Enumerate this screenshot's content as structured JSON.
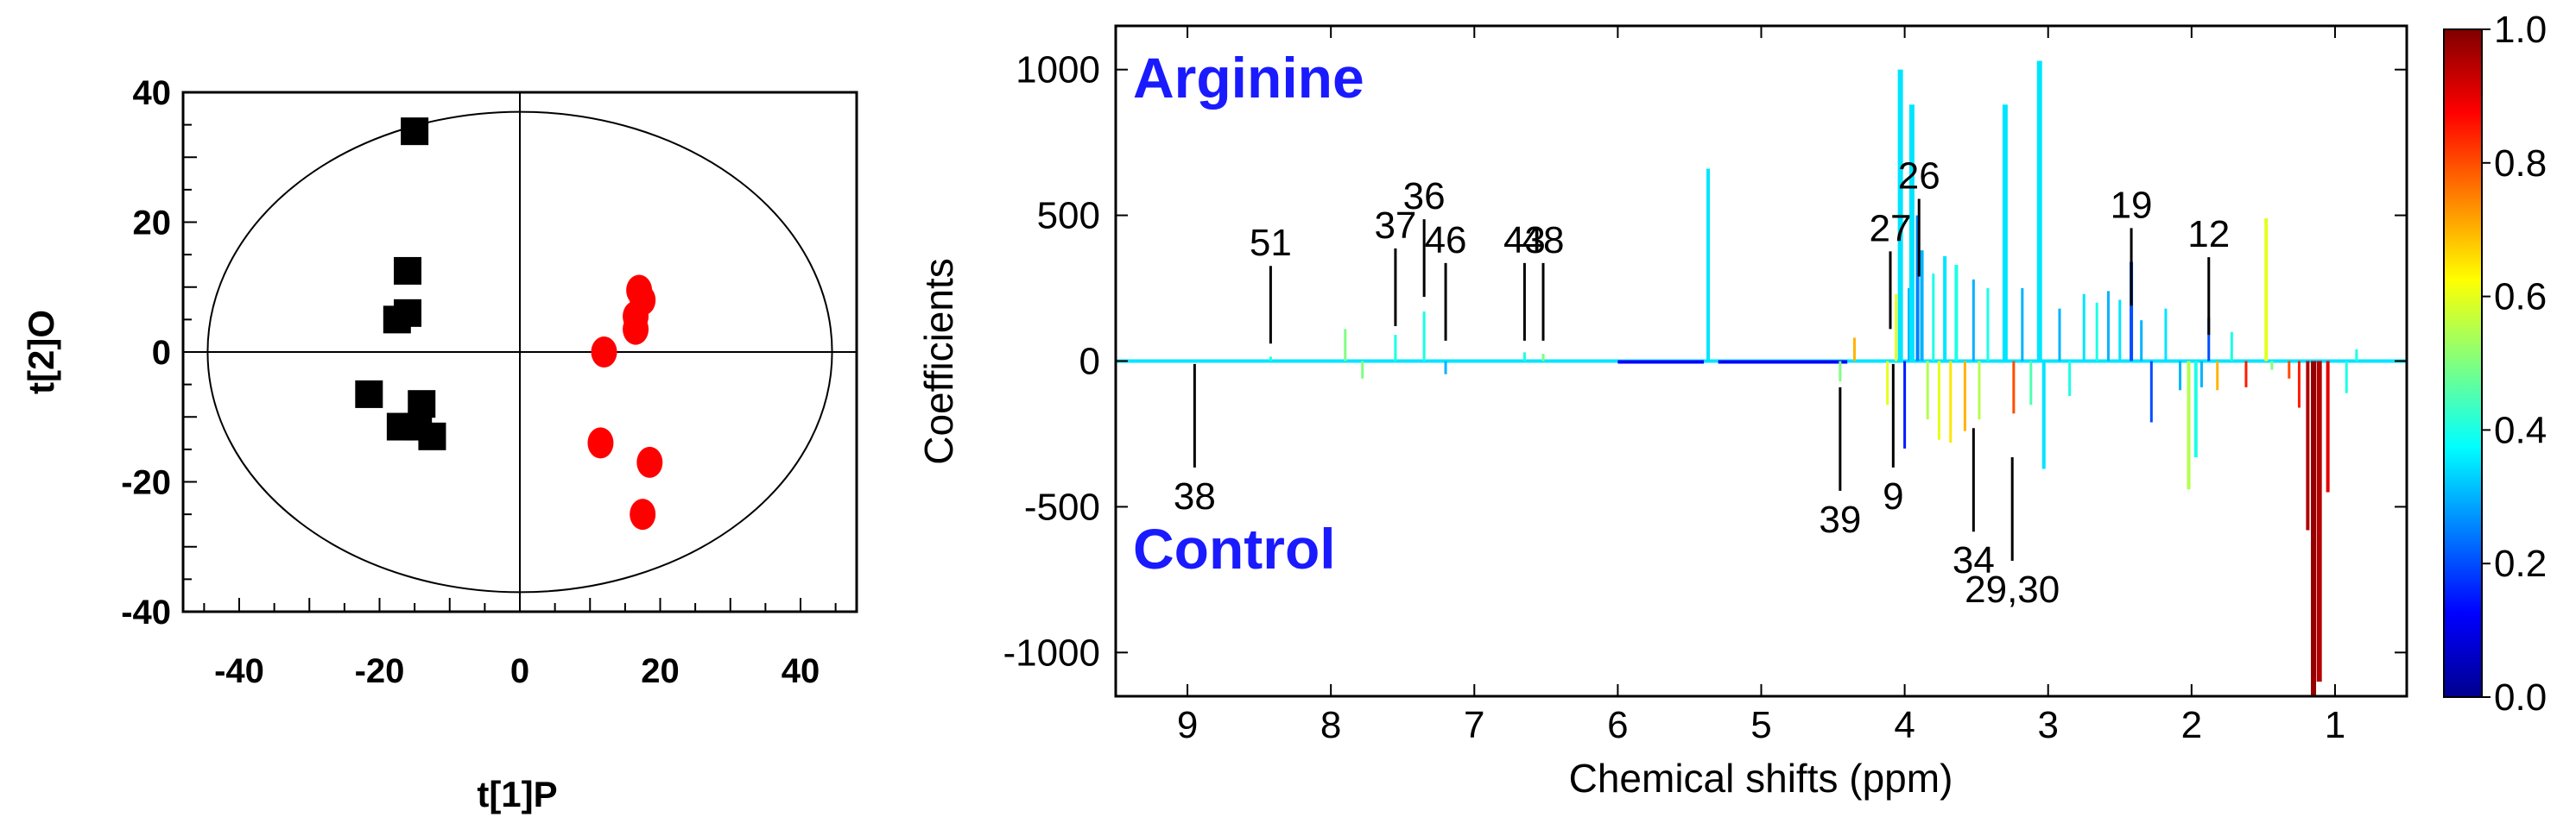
{
  "chart_data": [
    {
      "type": "scatter",
      "xlabel": "t[1]P",
      "ylabel": "t[2]O",
      "xlim": [
        -48,
        48
      ],
      "ylim": [
        -40,
        40
      ],
      "xticks": [
        -40,
        -20,
        0,
        20,
        40
      ],
      "yticks": [
        40,
        20,
        0,
        -20,
        -40
      ],
      "grid": false,
      "ellipse": {
        "center": [
          0,
          0
        ],
        "rx": 44.5,
        "ry": 37
      },
      "series": [
        {
          "color": "#000000",
          "marker": "square",
          "points": [
            [
              -15,
              34
            ],
            [
              -16,
              12.5
            ],
            [
              -16,
              6
            ],
            [
              -17.5,
              5
            ],
            [
              -21.5,
              -6.5
            ],
            [
              -14,
              -8
            ],
            [
              -17,
              -11.5
            ],
            [
              -14.5,
              -11.5
            ],
            [
              -12.5,
              -13
            ]
          ]
        },
        {
          "color": "#ff0000",
          "marker": "circle",
          "points": [
            [
              17,
              9.5
            ],
            [
              17.5,
              8
            ],
            [
              16.5,
              5.5
            ],
            [
              16.5,
              3.5
            ],
            [
              12,
              0
            ],
            [
              11.5,
              -14
            ],
            [
              18.5,
              -17
            ],
            [
              17.5,
              -25
            ]
          ]
        }
      ]
    },
    {
      "type": "line",
      "xlabel": "Chemical shifts (ppm)",
      "ylabel": "Coefficients",
      "xlim": [
        9.5,
        0.5
      ],
      "ylim": [
        -1150,
        1150
      ],
      "xticks": [
        9,
        8,
        7,
        6,
        5,
        4,
        3,
        2,
        1
      ],
      "yticks": [
        1000,
        500,
        0,
        -500,
        -1000
      ],
      "top_label": "Arginine",
      "bottom_label": "Control",
      "colorbar": {
        "min": 0.0,
        "max": 1.0,
        "ticks": [
          "1.0",
          "0.8",
          "0.6",
          "0.4",
          "0.2",
          "0.0"
        ]
      },
      "spikes": [
        {
          "x": 8.42,
          "y": 15,
          "c": 0.4
        },
        {
          "x": 7.9,
          "y": 110,
          "c": 0.5
        },
        {
          "x": 7.78,
          "y": -60,
          "c": 0.5
        },
        {
          "x": 7.55,
          "y": 90,
          "c": 0.4
        },
        {
          "x": 7.35,
          "y": 170,
          "c": 0.4
        },
        {
          "x": 7.2,
          "y": -45,
          "c": 0.3
        },
        {
          "x": 6.65,
          "y": 30,
          "c": 0.4
        },
        {
          "x": 6.52,
          "y": 25,
          "c": 0.5
        },
        {
          "x": 5.37,
          "y": 660,
          "c": 0.35
        },
        {
          "x": 4.45,
          "y": -70,
          "c": 0.5
        },
        {
          "x": 4.35,
          "y": 80,
          "c": 0.7
        },
        {
          "x": 4.12,
          "y": -150,
          "c": 0.6
        },
        {
          "x": 4.06,
          "y": 230,
          "c": 0.6
        },
        {
          "x": 4.03,
          "y": 1000,
          "c": 0.35
        },
        {
          "x": 4.0,
          "y": -300,
          "c": 0.15
        },
        {
          "x": 3.97,
          "y": 250,
          "c": 0.3
        },
        {
          "x": 3.95,
          "y": 880,
          "c": 0.35
        },
        {
          "x": 3.91,
          "y": 500,
          "c": 0.25
        },
        {
          "x": 3.88,
          "y": 380,
          "c": 0.3
        },
        {
          "x": 3.84,
          "y": -200,
          "c": 0.55
        },
        {
          "x": 3.8,
          "y": 300,
          "c": 0.4
        },
        {
          "x": 3.76,
          "y": -270,
          "c": 0.6
        },
        {
          "x": 3.72,
          "y": 360,
          "c": 0.35
        },
        {
          "x": 3.68,
          "y": -280,
          "c": 0.65
        },
        {
          "x": 3.64,
          "y": 330,
          "c": 0.4
        },
        {
          "x": 3.58,
          "y": -240,
          "c": 0.7
        },
        {
          "x": 3.52,
          "y": 280,
          "c": 0.3
        },
        {
          "x": 3.48,
          "y": -200,
          "c": 0.55
        },
        {
          "x": 3.42,
          "y": 250,
          "c": 0.4
        },
        {
          "x": 3.3,
          "y": 880,
          "c": 0.35
        },
        {
          "x": 3.24,
          "y": -180,
          "c": 0.8
        },
        {
          "x": 3.18,
          "y": 250,
          "c": 0.3
        },
        {
          "x": 3.12,
          "y": -150,
          "c": 0.45
        },
        {
          "x": 3.06,
          "y": 1030,
          "c": 0.35
        },
        {
          "x": 3.03,
          "y": -370,
          "c": 0.35
        },
        {
          "x": 2.92,
          "y": 180,
          "c": 0.3
        },
        {
          "x": 2.85,
          "y": -120,
          "c": 0.4
        },
        {
          "x": 2.75,
          "y": 230,
          "c": 0.35
        },
        {
          "x": 2.66,
          "y": 200,
          "c": 0.4
        },
        {
          "x": 2.58,
          "y": 240,
          "c": 0.3
        },
        {
          "x": 2.5,
          "y": 210,
          "c": 0.35
        },
        {
          "x": 2.42,
          "y": 340,
          "c": 0.2
        },
        {
          "x": 2.35,
          "y": 140,
          "c": 0.3
        },
        {
          "x": 2.28,
          "y": -210,
          "c": 0.2
        },
        {
          "x": 2.18,
          "y": 180,
          "c": 0.35
        },
        {
          "x": 2.08,
          "y": -100,
          "c": 0.3
        },
        {
          "x": 2.02,
          "y": -440,
          "c": 0.55
        },
        {
          "x": 1.97,
          "y": -330,
          "c": 0.4
        },
        {
          "x": 1.93,
          "y": -90,
          "c": 0.3
        },
        {
          "x": 1.88,
          "y": 150,
          "c": 0.2
        },
        {
          "x": 1.82,
          "y": -100,
          "c": 0.7
        },
        {
          "x": 1.72,
          "y": 100,
          "c": 0.4
        },
        {
          "x": 1.62,
          "y": -90,
          "c": 0.85
        },
        {
          "x": 1.48,
          "y": 490,
          "c": 0.6
        },
        {
          "x": 1.44,
          "y": -30,
          "c": 0.5
        },
        {
          "x": 1.32,
          "y": -60,
          "c": 0.8
        },
        {
          "x": 1.25,
          "y": -160,
          "c": 0.85
        },
        {
          "x": 1.19,
          "y": -580,
          "c": 0.95
        },
        {
          "x": 1.15,
          "y": -1150,
          "c": 0.98
        },
        {
          "x": 1.11,
          "y": -1100,
          "c": 0.95
        },
        {
          "x": 1.05,
          "y": -450,
          "c": 0.9
        },
        {
          "x": 0.92,
          "y": -110,
          "c": 0.4
        },
        {
          "x": 0.85,
          "y": 40,
          "c": 0.4
        }
      ],
      "annotations": [
        {
          "text": "51",
          "x": 8.42,
          "y": 60,
          "side": "top"
        },
        {
          "text": "37",
          "x": 7.55,
          "y": 120,
          "side": "top"
        },
        {
          "text": "36",
          "x": 7.35,
          "y": 220,
          "side": "top"
        },
        {
          "text": "46",
          "x": 7.2,
          "y": 70,
          "side": "top"
        },
        {
          "text": "43",
          "x": 6.65,
          "y": 70,
          "side": "top"
        },
        {
          "text": "48",
          "x": 6.52,
          "y": 70,
          "side": "top"
        },
        {
          "text": "27",
          "x": 4.1,
          "y": 110,
          "side": "top"
        },
        {
          "text": "26",
          "x": 3.9,
          "y": 290,
          "side": "top"
        },
        {
          "text": "19",
          "x": 2.42,
          "y": 190,
          "side": "top"
        },
        {
          "text": "12",
          "x": 1.88,
          "y": 90,
          "side": "top"
        },
        {
          "text": "38",
          "x": 8.95,
          "y": -10,
          "side": "bottom"
        },
        {
          "text": "39",
          "x": 4.45,
          "y": -90,
          "side": "bottom"
        },
        {
          "text": "9",
          "x": 4.08,
          "y": -10,
          "side": "bottom"
        },
        {
          "text": "34",
          "x": 3.52,
          "y": -230,
          "side": "bottom"
        },
        {
          "text": "29,30",
          "x": 3.25,
          "y": -330,
          "side": "bottom"
        }
      ]
    }
  ]
}
